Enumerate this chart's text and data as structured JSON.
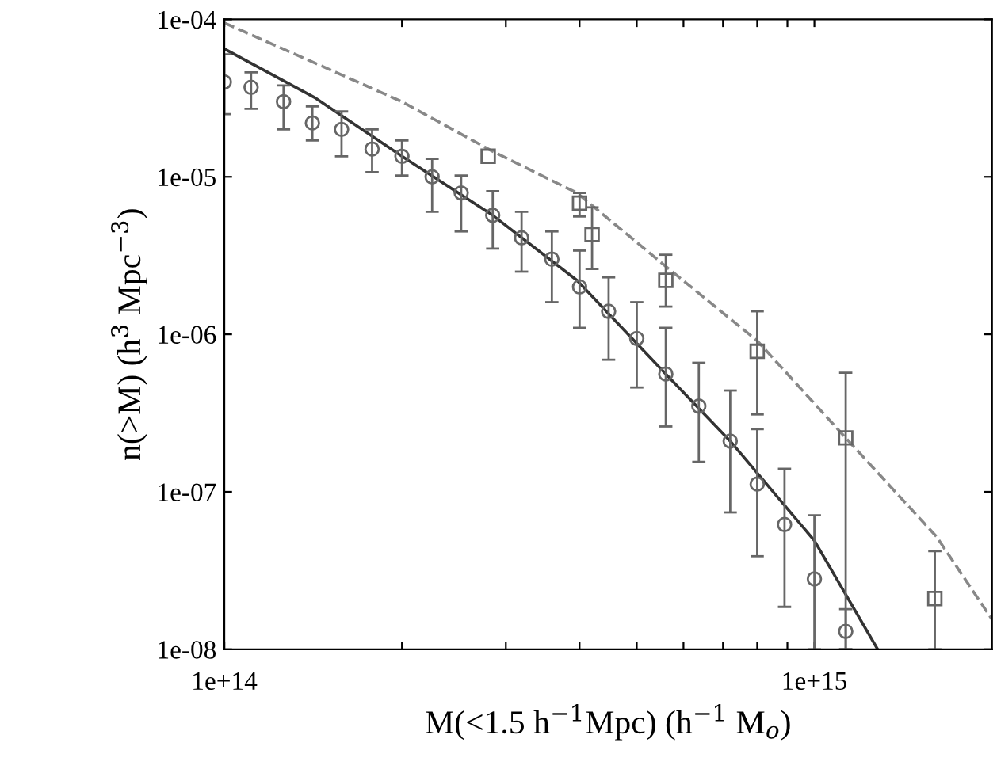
{
  "chart_data": {
    "type": "line",
    "log": "xy",
    "xlabel": "M(<1.5 h$^{−1}$Mpc) (h$^{−1}$ M$_{o}$)",
    "ylabel": "n(>M) (h$^{3}$ Mpc$^{−3}$)",
    "xlim": [
      100000000000000.0,
      2000000000000000.0
    ],
    "ylim": [
      1e-08,
      0.0001
    ],
    "xticks": [
      {
        "value": 100000000000000.0,
        "label": "1e+14"
      },
      {
        "value": 200000000000000.0,
        "label": null
      },
      {
        "value": 300000000000000.0,
        "label": null
      },
      {
        "value": 400000000000000.0,
        "label": null
      },
      {
        "value": 500000000000000.0,
        "label": null
      },
      {
        "value": 600000000000000.0,
        "label": null
      },
      {
        "value": 700000000000000.0,
        "label": null
      },
      {
        "value": 800000000000000.0,
        "label": null
      },
      {
        "value": 900000000000000.0,
        "label": null
      },
      {
        "value": 1000000000000000.0,
        "label": "1e+15"
      }
    ],
    "yticks": [
      {
        "value": 1e-08,
        "label": "1e-08"
      },
      {
        "value": 1e-07,
        "label": "1e-07"
      },
      {
        "value": 1e-06,
        "label": "1e-06"
      },
      {
        "value": 1e-05,
        "label": "1e-05"
      },
      {
        "value": 0.0001,
        "label": "1e-04"
      }
    ],
    "grid": false,
    "legend": false,
    "series": [
      {
        "line_style": "solid",
        "color": "#333333",
        "x": [
          100000000000000.0,
          142000000000000.0,
          200000000000000.0,
          285000000000000.0,
          396000000000000.0,
          560000000000000.0,
          720000000000000.0,
          1000000000000000.0,
          1280000000000000.0
        ],
        "values": [
          6.5e-05,
          3.2e-05,
          1.35e-05,
          5.7e-06,
          2.2e-06,
          5.6e-07,
          2.1e-07,
          4.9e-08,
          1e-08
        ]
      },
      {
        "line_style": "dashed",
        "color": "#888888",
        "x": [
          100000000000000.0,
          200000000000000.0,
          285000000000000.0,
          396000000000000.0,
          560000000000000.0,
          800000000000000.0,
          1130000000000000.0,
          1610000000000000.0,
          2000000000000000.0
        ],
        "values": [
          9.5e-05,
          3e-05,
          1.45e-05,
          7.9e-06,
          2.7e-06,
          9.1e-07,
          2.2e-07,
          5.2e-08,
          1.55e-08
        ]
      },
      {
        "type": "scatter",
        "marker": "circle",
        "color": "#666666",
        "x": [
          100000000000000.0,
          111000000000000.0,
          126000000000000.0,
          141000000000000.0,
          158000000000000.0,
          178000000000000.0,
          200000000000000.0,
          225000000000000.0,
          252000000000000.0,
          285000000000000.0,
          319000000000000.0,
          359000000000000.0,
          400000000000000.0,
          448000000000000.0,
          500000000000000.0,
          560000000000000.0,
          637000000000000.0,
          720000000000000.0,
          800000000000000.0,
          890000000000000.0,
          1000000000000000.0,
          1130000000000000.0
        ],
        "values": [
          4e-05,
          3.7e-05,
          3e-05,
          2.2e-05,
          2e-05,
          1.5e-05,
          1.35e-05,
          1e-05,
          7.9e-06,
          5.7e-06,
          4.1e-06,
          3e-06,
          2e-06,
          1.4e-06,
          9.4e-07,
          5.6e-07,
          3.5e-07,
          2.1e-07,
          1.12e-07,
          6.2e-08,
          2.8e-08,
          1.3e-08
        ],
        "errors": [
          [
            2.5e-05,
            6e-05
          ],
          [
            2.7e-05,
            4.6e-05
          ],
          [
            2e-05,
            3.8e-05
          ],
          [
            1.7e-05,
            2.8e-05
          ],
          [
            1.35e-05,
            2.6e-05
          ],
          [
            1.07e-05,
            2e-05
          ],
          [
            1.02e-05,
            1.7e-05
          ],
          [
            6e-06,
            1.3e-05
          ],
          [
            4.5e-06,
            1.02e-05
          ],
          [
            3.5e-06,
            8.1e-06
          ],
          [
            2.5e-06,
            6e-06
          ],
          [
            1.6e-06,
            4.5e-06
          ],
          [
            1.1e-06,
            3.4e-06
          ],
          [
            6.9e-07,
            2.3e-06
          ],
          [
            4.6e-07,
            1.6e-06
          ],
          [
            2.6e-07,
            1.1e-06
          ],
          [
            1.55e-07,
            6.6e-07
          ],
          [
            7.4e-08,
            4.4e-07
          ],
          [
            3.9e-08,
            2.5e-07
          ],
          [
            1.86e-08,
            1.4e-07
          ],
          [
            1e-08,
            7.1e-08
          ],
          [
            1e-08,
            1.8e-08
          ]
        ]
      },
      {
        "type": "scatter",
        "marker": "square",
        "color": "#666666",
        "x": [
          280000000000000.0,
          400000000000000.0,
          420000000000000.0,
          560000000000000.0,
          800000000000000.0,
          1130000000000000.0,
          1600000000000000.0
        ],
        "values": [
          1.35e-05,
          6.8e-06,
          4.3e-06,
          2.2e-06,
          7.8e-07,
          2.2e-07,
          2.1e-08
        ],
        "errors": [
          null,
          [
            5.6e-06,
            7.9e-06
          ],
          [
            2.6e-06,
            6.4e-06
          ],
          [
            1.5e-06,
            3.2e-06
          ],
          [
            3.1e-07,
            1.4e-06
          ],
          [
            1e-08,
            5.7e-07
          ],
          [
            1e-08,
            4.2e-08
          ]
        ]
      }
    ]
  }
}
